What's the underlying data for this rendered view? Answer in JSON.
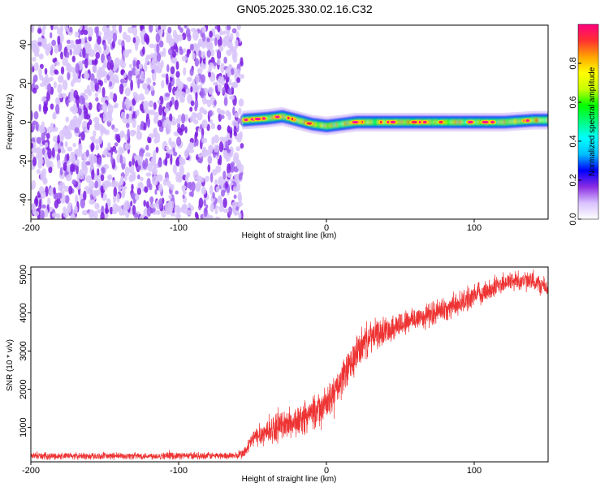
{
  "figure_title": "GN05.2025.330.02.16.C32",
  "chart_data": [
    {
      "type": "heatmap",
      "title": "GN05.2025.330.02.16.C32",
      "xlabel": "Height of straight line (km)",
      "ylabel": "Frequency (Hz)",
      "xlim": [
        -200,
        150
      ],
      "ylim": [
        -50,
        50
      ],
      "x_ticks": [
        -200,
        -100,
        0,
        100
      ],
      "y_ticks": [
        -40,
        -20,
        0,
        20,
        40
      ],
      "colorbar": {
        "label": "Normalized spectral amplitude",
        "range": [
          0,
          1
        ],
        "ticks": [
          0.0,
          0.2,
          0.4,
          0.6,
          0.8
        ],
        "colormap": [
          "#ffffff",
          "#d9c2ff",
          "#8a2be2",
          "#0000ff",
          "#00bfff",
          "#00ffff",
          "#00ff80",
          "#00ff00",
          "#c8ff00",
          "#ffff00",
          "#ffa500",
          "#ff3030",
          "#ff0080"
        ]
      },
      "noise_region": {
        "x_range": [
          -200,
          -57
        ],
        "typical_amplitude": 0.15
      },
      "signal_band": {
        "x_range": [
          -57,
          150
        ],
        "centre_frequency": [
          [
            -57,
            1
          ],
          [
            -40,
            2
          ],
          [
            -30,
            3
          ],
          [
            -20,
            1
          ],
          [
            -10,
            -1
          ],
          [
            0,
            -2
          ],
          [
            20,
            0
          ],
          [
            40,
            0
          ],
          [
            60,
            0
          ],
          [
            80,
            0
          ],
          [
            100,
            0
          ],
          [
            120,
            0
          ],
          [
            140,
            1
          ],
          [
            150,
            1
          ]
        ],
        "half_width_hz": 3,
        "peak_amplitude": 1.0
      }
    },
    {
      "type": "line",
      "xlabel": "Height of straight line (km)",
      "ylabel": "SNR (10 * v/v)",
      "xlim": [
        -200,
        150
      ],
      "ylim": [
        100,
        5200
      ],
      "x_ticks": [
        -200,
        -100,
        0,
        100
      ],
      "y_ticks": [
        1000,
        2000,
        3000,
        4000,
        5000
      ],
      "series": [
        {
          "name": "SNR",
          "color": "#ee3333",
          "trend": [
            [
              -200,
              250
            ],
            [
              -150,
              250
            ],
            [
              -100,
              260
            ],
            [
              -60,
              260
            ],
            [
              -55,
              350
            ],
            [
              -50,
              700
            ],
            [
              -40,
              900
            ],
            [
              -30,
              1050
            ],
            [
              -20,
              1150
            ],
            [
              -10,
              1350
            ],
            [
              0,
              1600
            ],
            [
              10,
              2200
            ],
            [
              20,
              2900
            ],
            [
              25,
              3200
            ],
            [
              30,
              3350
            ],
            [
              40,
              3550
            ],
            [
              50,
              3700
            ],
            [
              60,
              3850
            ],
            [
              70,
              3950
            ],
            [
              80,
              4100
            ],
            [
              90,
              4250
            ],
            [
              100,
              4450
            ],
            [
              110,
              4600
            ],
            [
              120,
              4800
            ],
            [
              130,
              4850
            ],
            [
              140,
              4800
            ],
            [
              150,
              4650
            ]
          ],
          "jitter": [
            [
              -200,
              110
            ],
            [
              -60,
              110
            ],
            [
              -55,
              200
            ],
            [
              -40,
              420
            ],
            [
              -20,
              480
            ],
            [
              0,
              520
            ],
            [
              20,
              600
            ],
            [
              40,
              420
            ],
            [
              80,
              380
            ],
            [
              120,
              330
            ],
            [
              150,
              300
            ]
          ]
        }
      ]
    }
  ]
}
